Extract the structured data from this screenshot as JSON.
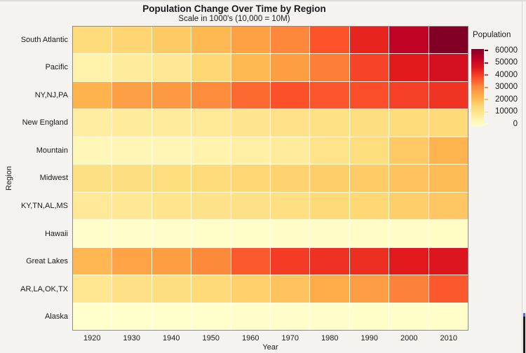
{
  "title": "Population Change Over Time by Region",
  "subtitle": "Scale in 1000's  (10,000 = 10M)",
  "legend": {
    "title": "Population",
    "ticks": [
      60000,
      50000,
      40000,
      30000,
      20000,
      10000,
      0
    ]
  },
  "chart_data": {
    "type": "heatmap",
    "title": "Population Change Over Time by Region",
    "subtitle": "Scale in 1000's  (10,000 = 10M)",
    "xlabel": "Year",
    "ylabel": "Region",
    "x": [
      1920,
      1930,
      1940,
      1950,
      1960,
      1970,
      1980,
      1990,
      2000,
      2010
    ],
    "rows": [
      "South Atlantic",
      "Pacific",
      "NY,NJ,PA",
      "New England",
      "Mountain",
      "Midwest",
      "KY,TN,AL,MS",
      "Hawaii",
      "Great Lakes",
      "AR,LA,OK,TX",
      "Alaska"
    ],
    "series": [
      {
        "name": "South Atlantic",
        "values": [
          13990,
          15794,
          17823,
          21182,
          25972,
          30671,
          36959,
          43567,
          51769,
          59777
        ]
      },
      {
        "name": "Pacific",
        "values": [
          5567,
          8194,
          9733,
          15115,
          21198,
          26523,
          31800,
          39127,
          45026,
          47798
        ]
      },
      {
        "name": "NY,NJ,PA",
        "values": [
          22261,
          26261,
          27539,
          30164,
          34168,
          37213,
          36787,
          37602,
          39672,
          41217
        ]
      },
      {
        "name": "New England",
        "values": [
          7401,
          8166,
          8437,
          9314,
          10509,
          11848,
          12349,
          13207,
          13923,
          14445
        ]
      },
      {
        "name": "Mountain",
        "values": [
          3336,
          3702,
          4150,
          5075,
          6855,
          8282,
          11373,
          13659,
          18172,
          22065
        ]
      },
      {
        "name": "Midwest",
        "values": [
          12544,
          13297,
          13517,
          14061,
          15394,
          16327,
          17183,
          17660,
          19237,
          20505
        ]
      },
      {
        "name": "KY,TN,AL,MS",
        "values": [
          8893,
          9887,
          10778,
          11477,
          12050,
          12808,
          14666,
          15176,
          17023,
          18432
        ]
      },
      {
        "name": "Hawaii",
        "values": [
          256,
          368,
          423,
          500,
          633,
          770,
          965,
          1108,
          1212,
          1360
        ]
      },
      {
        "name": "Great Lakes",
        "values": [
          21476,
          25297,
          26626,
          30399,
          36225,
          40263,
          41682,
          42009,
          45155,
          46421
        ]
      },
      {
        "name": "AR,LA,OK,TX",
        "values": [
          10242,
          12177,
          13065,
          14538,
          16951,
          19326,
          23747,
          26703,
          31445,
          36347
        ]
      },
      {
        "name": "Alaska",
        "values": [
          55,
          59,
          73,
          129,
          226,
          301,
          402,
          550,
          627,
          710
        ]
      }
    ],
    "colorscale": {
      "domain": [
        0,
        60000
      ],
      "stops": [
        "#FFFFCC",
        "#FFEDA0",
        "#FED976",
        "#FEB24C",
        "#FD8D3C",
        "#FC4E2A",
        "#E31A1C",
        "#BD0026",
        "#800026"
      ]
    },
    "legend_title": "Population",
    "legend_ticks": [
      60000,
      50000,
      40000,
      30000,
      20000,
      10000,
      0
    ],
    "grid": false,
    "legend_position": "right"
  }
}
